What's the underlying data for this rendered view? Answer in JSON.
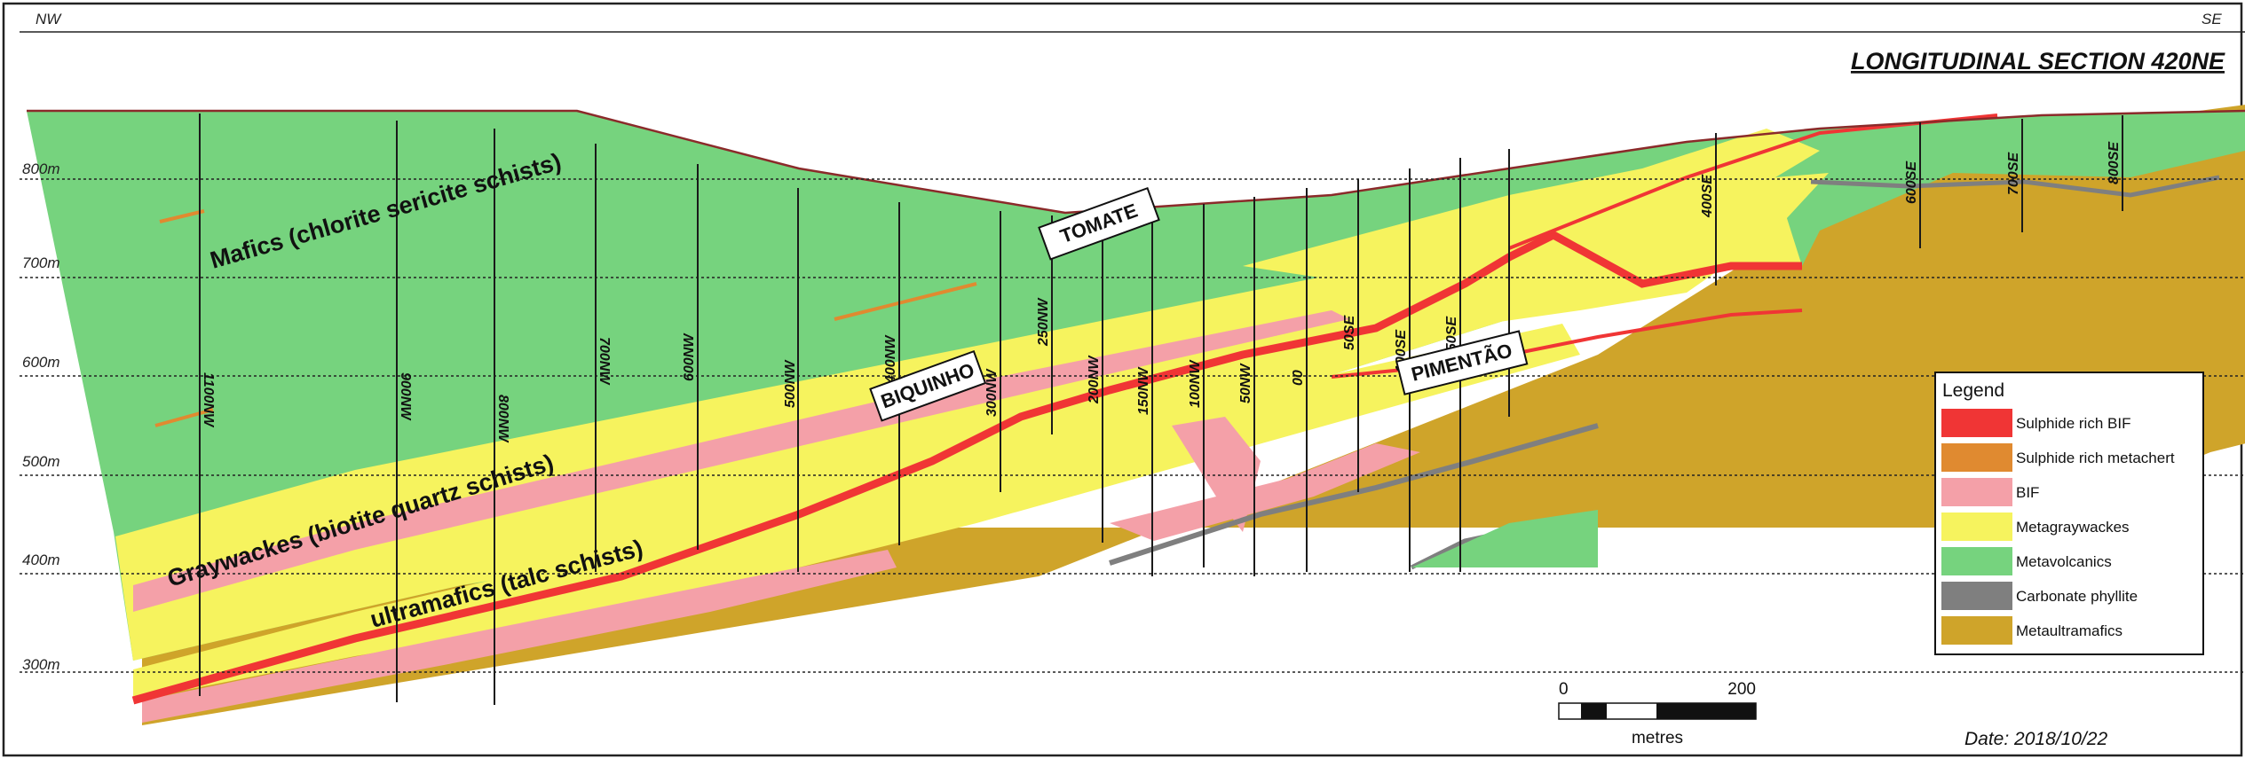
{
  "title": "LONGITUDINAL SECTION 420NE",
  "directions": {
    "left": "NW",
    "right": "SE"
  },
  "elevations": [
    "800m",
    "700m",
    "600m",
    "500m",
    "400m",
    "300m"
  ],
  "drillholes": [
    "1100NW",
    "900NW",
    "800NW",
    "700NW",
    "600NW",
    "500NW",
    "400NW",
    "300NW",
    "250NW",
    "200NW",
    "150NW",
    "100NW",
    "50NW",
    "00",
    "50SE",
    "100SE",
    "150SE",
    "400SE",
    "600SE",
    "700SE",
    "800SE"
  ],
  "unit_labels": {
    "mafics": "Mafics (chlorite sericite schists)",
    "graywackes": "Graywackes (biotite quartz schists)",
    "ultramafics": "ultramafics (talc schists)"
  },
  "deposits": {
    "tomate": "TOMATE",
    "biquinho": "BIQUINHO",
    "pimentao": "PIMENTÃO"
  },
  "legend": {
    "title": "Legend",
    "items": [
      {
        "label": "Sulphide rich BIF",
        "color": "#f03535"
      },
      {
        "label": "Sulphide rich metachert",
        "color": "#e08a30"
      },
      {
        "label": "BIF",
        "color": "#f4a0a8"
      },
      {
        "label": "Metagraywackes",
        "color": "#f6f35e"
      },
      {
        "label": "Metavolcanics",
        "color": "#76d37e"
      },
      {
        "label": "Carbonate phyllite",
        "color": "#7f7f7f"
      },
      {
        "label": "Metaultramafics",
        "color": "#cfa42a"
      }
    ]
  },
  "scale": {
    "start": "0",
    "end": "200",
    "unit": "metres"
  },
  "date": "Date: 2018/10/22"
}
